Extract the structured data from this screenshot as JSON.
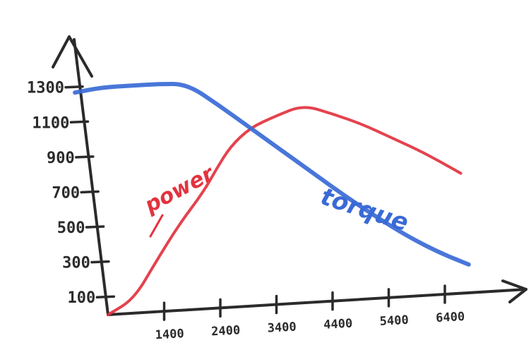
{
  "chart_data": {
    "type": "line",
    "title": "",
    "xlabel": "",
    "ylabel": "",
    "x_ticks": [
      "1400",
      "2400",
      "3400",
      "4400",
      "5400",
      "6400"
    ],
    "y_ticks": [
      "100",
      "300",
      "500",
      "700",
      "900",
      "1100",
      "1300"
    ],
    "xlim": [
      400,
      7500
    ],
    "ylim": [
      0,
      1300
    ],
    "series": [
      {
        "name": "power",
        "color": "#e2333f",
        "points": [
          [
            400,
            0
          ],
          [
            900,
            80
          ],
          [
            1400,
            290
          ],
          [
            1900,
            490
          ],
          [
            2400,
            660
          ],
          [
            2700,
            790
          ],
          [
            3000,
            910
          ],
          [
            3400,
            1010
          ],
          [
            3900,
            1070
          ],
          [
            4400,
            1120
          ],
          [
            4900,
            1060
          ],
          [
            5400,
            990
          ],
          [
            5900,
            900
          ],
          [
            6400,
            810
          ],
          [
            7000,
            680
          ]
        ]
      },
      {
        "name": "torque",
        "color": "#3a6ad6",
        "points": [
          [
            400,
            1270
          ],
          [
            900,
            1290
          ],
          [
            1400,
            1290
          ],
          [
            1900,
            1290
          ],
          [
            2400,
            1280
          ],
          [
            2900,
            1150
          ],
          [
            3400,
            1010
          ],
          [
            3900,
            870
          ],
          [
            4400,
            730
          ],
          [
            4900,
            590
          ],
          [
            5400,
            460
          ],
          [
            5900,
            340
          ],
          [
            6400,
            240
          ],
          [
            6900,
            160
          ]
        ]
      }
    ],
    "labels": {
      "power": "power",
      "torque": "torque"
    }
  }
}
